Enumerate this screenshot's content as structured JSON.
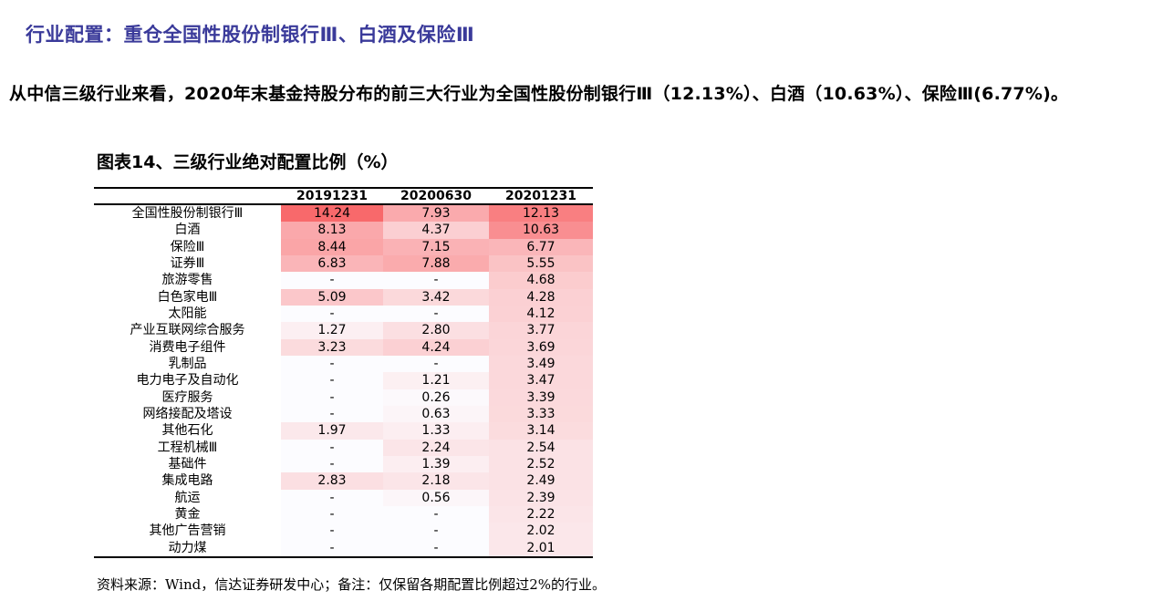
{
  "heading": "行业配置：重仓全国性股份制银行Ⅲ、白酒及保险Ⅲ",
  "summary": "从中信三级行业来看，2020年末基金持股分布的前三大行业为全国性股份制银行Ⅲ（12.13%）、白酒（10.63%）、保险Ⅲ(6.77%)。",
  "figure_title": "图表14、三级行业绝对配置比例（%）",
  "colors": {
    "heading": "#3a3a9a",
    "heat_high": "#f8696b",
    "heat_low": "#fcfcff"
  },
  "table": {
    "columns": [
      "",
      "20191231",
      "20200630",
      "20201231"
    ],
    "rows": [
      [
        "全国性股份制银行Ⅲ",
        "14.24",
        "7.93",
        "12.13"
      ],
      [
        "白酒",
        "8.13",
        "4.37",
        "10.63"
      ],
      [
        "保险Ⅲ",
        "8.44",
        "7.15",
        "6.77"
      ],
      [
        "证券Ⅲ",
        "6.83",
        "7.88",
        "5.55"
      ],
      [
        "旅游零售",
        "-",
        "-",
        "4.68"
      ],
      [
        "白色家电Ⅲ",
        "5.09",
        "3.42",
        "4.28"
      ],
      [
        "太阳能",
        "-",
        "-",
        "4.12"
      ],
      [
        "产业互联网综合服务",
        "1.27",
        "2.80",
        "3.77"
      ],
      [
        "消费电子组件",
        "3.23",
        "4.24",
        "3.69"
      ],
      [
        "乳制品",
        "-",
        "-",
        "3.49"
      ],
      [
        "电力电子及自动化",
        "-",
        "1.21",
        "3.47"
      ],
      [
        "医疗服务",
        "-",
        "0.26",
        "3.39"
      ],
      [
        "网络接配及塔设",
        "-",
        "0.63",
        "3.33"
      ],
      [
        "其他石化",
        "1.97",
        "1.33",
        "3.14"
      ],
      [
        "工程机械Ⅲ",
        "-",
        "2.24",
        "2.54"
      ],
      [
        "基础件",
        "-",
        "1.39",
        "2.52"
      ],
      [
        "集成电路",
        "2.83",
        "2.18",
        "2.49"
      ],
      [
        "航运",
        "-",
        "0.56",
        "2.39"
      ],
      [
        "黄金",
        "-",
        "-",
        "2.22"
      ],
      [
        "其他广告营销",
        "-",
        "-",
        "2.02"
      ],
      [
        "动力煤",
        "-",
        "-",
        "2.01"
      ]
    ]
  },
  "source": "资料来源：Wind，信达证券研发中心；备注：仅保留各期配置比例超过2%的行业。"
}
